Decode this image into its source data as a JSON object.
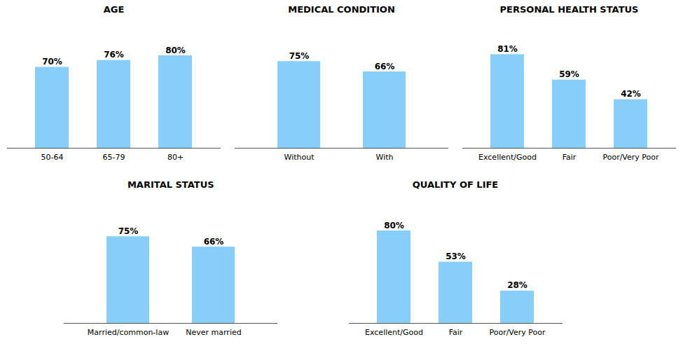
{
  "chart_data": [
    {
      "type": "bar",
      "title": "AGE",
      "categories": [
        "50-64",
        "65-79",
        "80+"
      ],
      "values": [
        70,
        76,
        80
      ],
      "value_labels": [
        "70%",
        "76%",
        "80%"
      ],
      "color": "#87CEFA",
      "ylim": [
        0,
        100
      ],
      "data_labels": true,
      "tick_labels": "x"
    },
    {
      "type": "bar",
      "title": "MEDICAL CONDITION",
      "categories": [
        "Without",
        "With"
      ],
      "values": [
        75,
        66
      ],
      "value_labels": [
        "75%",
        "66%"
      ],
      "color": "#87CEFA",
      "ylim": [
        0,
        100
      ],
      "data_labels": true,
      "tick_labels": "x"
    },
    {
      "type": "bar",
      "title": "PERSONAL HEALTH STATUS",
      "categories": [
        "Excellent/Good",
        "Fair",
        "Poor/Very Poor"
      ],
      "values": [
        81,
        59,
        42
      ],
      "value_labels": [
        "81%",
        "59%",
        "42%"
      ],
      "color": "#87CEFA",
      "ylim": [
        0,
        100
      ],
      "data_labels": true,
      "tick_labels": "x"
    },
    {
      "type": "bar",
      "title": "MARITAL STATUS",
      "categories": [
        "Married/common-law",
        "Never married"
      ],
      "values": [
        75,
        66
      ],
      "value_labels": [
        "75%",
        "66%"
      ],
      "color": "#87CEFA",
      "ylim": [
        0,
        100
      ],
      "data_labels": true,
      "tick_labels": "x"
    },
    {
      "type": "bar",
      "title": "QUALITY OF LIFE",
      "categories": [
        "Excellent/Good",
        "Fair",
        "Poor/Very Poor"
      ],
      "values": [
        80,
        53,
        28
      ],
      "value_labels": [
        "80%",
        "53%",
        "28%"
      ],
      "color": "#87CEFA",
      "ylim": [
        0,
        100
      ],
      "data_labels": true,
      "tick_labels": "x"
    }
  ]
}
